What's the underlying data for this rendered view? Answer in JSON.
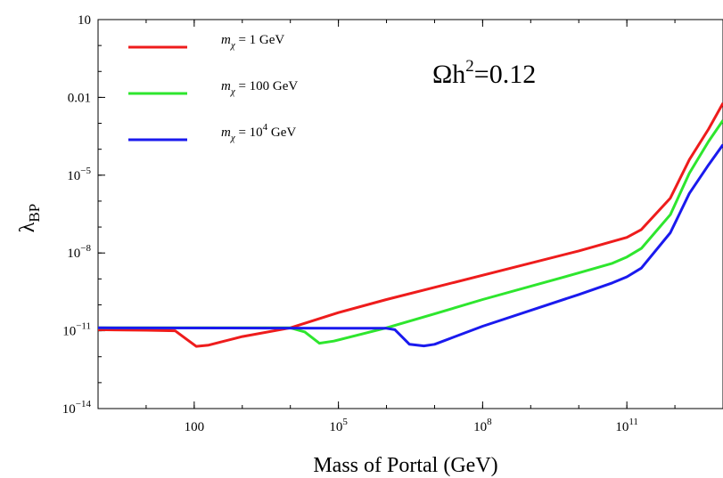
{
  "chart_data": {
    "type": "line",
    "xlabel": "Mass of Portal (GeV)",
    "ylabel": "λ",
    "ylabel_sub": "BP",
    "x_scale": "log10",
    "y_scale": "log10",
    "xlim": [
      1,
      10000000000000
    ],
    "ylim": [
      1e-14,
      10
    ],
    "x_ticks": [
      {
        "value": 100,
        "base": "100",
        "exp": ""
      },
      {
        "value": 100000,
        "base": "10",
        "exp": "5"
      },
      {
        "value": 100000000,
        "base": "10",
        "exp": "8"
      },
      {
        "value": 100000000000,
        "base": "10",
        "exp": "11"
      }
    ],
    "y_ticks": [
      {
        "value": 10,
        "base": "10",
        "exp": ""
      },
      {
        "value": 0.01,
        "base": "0.01",
        "exp": ""
      },
      {
        "value": 1e-05,
        "base": "10",
        "exp": "−5"
      },
      {
        "value": 1e-08,
        "base": "10",
        "exp": "−8"
      },
      {
        "value": 1e-11,
        "base": "10",
        "exp": "−11"
      },
      {
        "value": 1e-14,
        "base": "10",
        "exp": "−14"
      }
    ],
    "annotation": {
      "base": "Ωh",
      "exp": "2",
      "rest": "=0.12"
    },
    "legend_position": "top-left",
    "series": [
      {
        "name_prefix": "m",
        "name_sub": "χ",
        "name_mid": " = 1 GeV",
        "name_exp": "",
        "name_suffix": "",
        "color": "#ee1c1c",
        "points": [
          [
            1,
            1.1e-11
          ],
          [
            10,
            1.05e-11
          ],
          [
            40,
            1e-11
          ],
          [
            110,
            2.5e-12
          ],
          [
            200,
            2.8e-12
          ],
          [
            1000,
            6e-12
          ],
          [
            10000,
            1.3e-11
          ],
          [
            100000,
            5e-11
          ],
          [
            1000000,
            1.6e-10
          ],
          [
            10000000000,
            1.2e-08
          ],
          [
            100000000000,
            4e-08
          ],
          [
            200000000000,
            8e-08
          ],
          [
            800000000000,
            1.3e-06
          ],
          [
            2000000000000,
            4e-05
          ],
          [
            5000000000000,
            0.0006
          ],
          [
            10000000000000,
            0.006
          ]
        ]
      },
      {
        "name_prefix": "m",
        "name_sub": "χ",
        "name_mid": " = 100 GeV",
        "name_exp": "",
        "name_suffix": "",
        "color": "#2ee62e",
        "points": [
          [
            1,
            1.3e-11
          ],
          [
            10000,
            1.3e-11
          ],
          [
            20000,
            9e-12
          ],
          [
            40000,
            3.3e-12
          ],
          [
            80000,
            4e-12
          ],
          [
            1000000,
            1.3e-11
          ],
          [
            10000000,
            4.5e-11
          ],
          [
            100000000,
            1.6e-10
          ],
          [
            10000000000,
            1.7e-09
          ],
          [
            50000000000,
            4e-09
          ],
          [
            100000000000,
            7e-09
          ],
          [
            200000000000,
            1.5e-08
          ],
          [
            800000000000,
            3e-07
          ],
          [
            2000000000000,
            1.2e-05
          ],
          [
            5000000000000,
            0.0002
          ],
          [
            10000000000000,
            0.0013
          ]
        ]
      },
      {
        "name_prefix": "m",
        "name_sub": "χ",
        "name_mid": " = 10",
        "name_exp": "4",
        "name_suffix": " GeV",
        "color": "#1a1aee",
        "points": [
          [
            1,
            1.3e-11
          ],
          [
            1000000,
            1.25e-11
          ],
          [
            1500000,
            1.1e-11
          ],
          [
            3000000,
            3e-12
          ],
          [
            6000000,
            2.6e-12
          ],
          [
            10000000,
            3e-12
          ],
          [
            100000000,
            1.5e-11
          ],
          [
            10000000000,
            2.5e-10
          ],
          [
            50000000000,
            7e-10
          ],
          [
            100000000000,
            1.2e-09
          ],
          [
            200000000000,
            2.6e-09
          ],
          [
            800000000000,
            6e-08
          ],
          [
            2000000000000,
            2e-06
          ],
          [
            5000000000000,
            2.5e-05
          ],
          [
            10000000000000,
            0.00015
          ]
        ]
      }
    ]
  }
}
